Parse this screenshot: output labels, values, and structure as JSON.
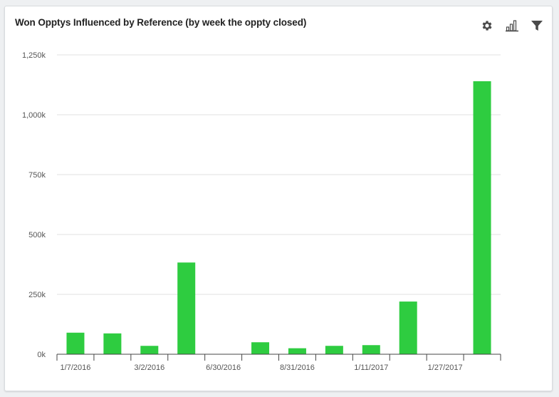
{
  "title": "Won Opptys Influenced by Reference (by week the oppty closed)",
  "icons": {
    "settings": "gear-icon",
    "chart_type": "bar-chart-icon",
    "filter": "filter-icon"
  },
  "colors": {
    "bar": "#2ecc40",
    "grid": "#e0e0e0",
    "axis": "#444444"
  },
  "chart_data": {
    "type": "bar",
    "title": "Won Opptys Influenced by Reference (by week the oppty closed)",
    "xlabel": "",
    "ylabel": "",
    "categories": [
      "1/7/2016",
      "",
      "3/2/2016",
      "",
      "6/30/2016",
      "",
      "8/31/2016",
      "",
      "1/11/2017",
      "",
      "1/27/2017",
      ""
    ],
    "values": [
      90000,
      87000,
      35000,
      383000,
      0,
      50000,
      25000,
      35000,
      38000,
      220000,
      0,
      1140000
    ],
    "ylim": [
      0,
      1250000
    ],
    "yticks": [
      0,
      250000,
      500000,
      750000,
      1000000,
      1250000
    ],
    "ytick_labels": [
      "0k",
      "250k",
      "500k",
      "750k",
      "1,000k",
      "1,250k"
    ],
    "grid": true,
    "legend": "none"
  }
}
